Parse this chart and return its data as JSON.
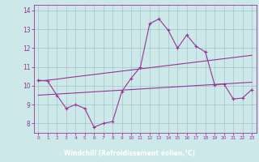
{
  "xlabel": "Windchill (Refroidissement éolien,°C)",
  "bg_color": "#cce8e8",
  "grid_color": "#aacccc",
  "line_color": "#993399",
  "xlabel_bg": "#993399",
  "xlabel_fg": "#ffffff",
  "x_data": [
    0,
    1,
    2,
    3,
    4,
    5,
    6,
    7,
    8,
    9,
    10,
    11,
    12,
    13,
    14,
    15,
    16,
    17,
    18,
    19,
    20,
    21,
    22,
    23
  ],
  "y_main": [
    10.3,
    10.25,
    9.5,
    8.8,
    9.0,
    8.8,
    7.8,
    8.0,
    8.1,
    9.7,
    10.4,
    11.0,
    13.3,
    13.55,
    12.95,
    12.0,
    12.7,
    12.1,
    11.8,
    10.05,
    10.1,
    9.3,
    9.35,
    9.8
  ],
  "y_upper": [
    10.25,
    10.3,
    10.35,
    10.42,
    10.48,
    10.54,
    10.6,
    10.66,
    10.72,
    10.78,
    10.84,
    10.9,
    10.96,
    11.02,
    11.08,
    11.14,
    11.2,
    11.26,
    11.32,
    11.38,
    11.44,
    11.5,
    11.56,
    11.62
  ],
  "y_lower": [
    9.5,
    9.53,
    9.56,
    9.59,
    9.62,
    9.65,
    9.68,
    9.71,
    9.74,
    9.77,
    9.8,
    9.83,
    9.86,
    9.89,
    9.92,
    9.95,
    9.98,
    10.01,
    10.04,
    10.07,
    10.1,
    10.13,
    10.16,
    10.19
  ],
  "ylim": [
    7.5,
    14.3
  ],
  "xlim": [
    -0.5,
    23.5
  ],
  "xticks": [
    0,
    1,
    2,
    3,
    4,
    5,
    6,
    7,
    8,
    9,
    10,
    11,
    12,
    13,
    14,
    15,
    16,
    17,
    18,
    19,
    20,
    21,
    22,
    23
  ],
  "yticks": [
    8,
    9,
    10,
    11,
    12,
    13,
    14
  ]
}
